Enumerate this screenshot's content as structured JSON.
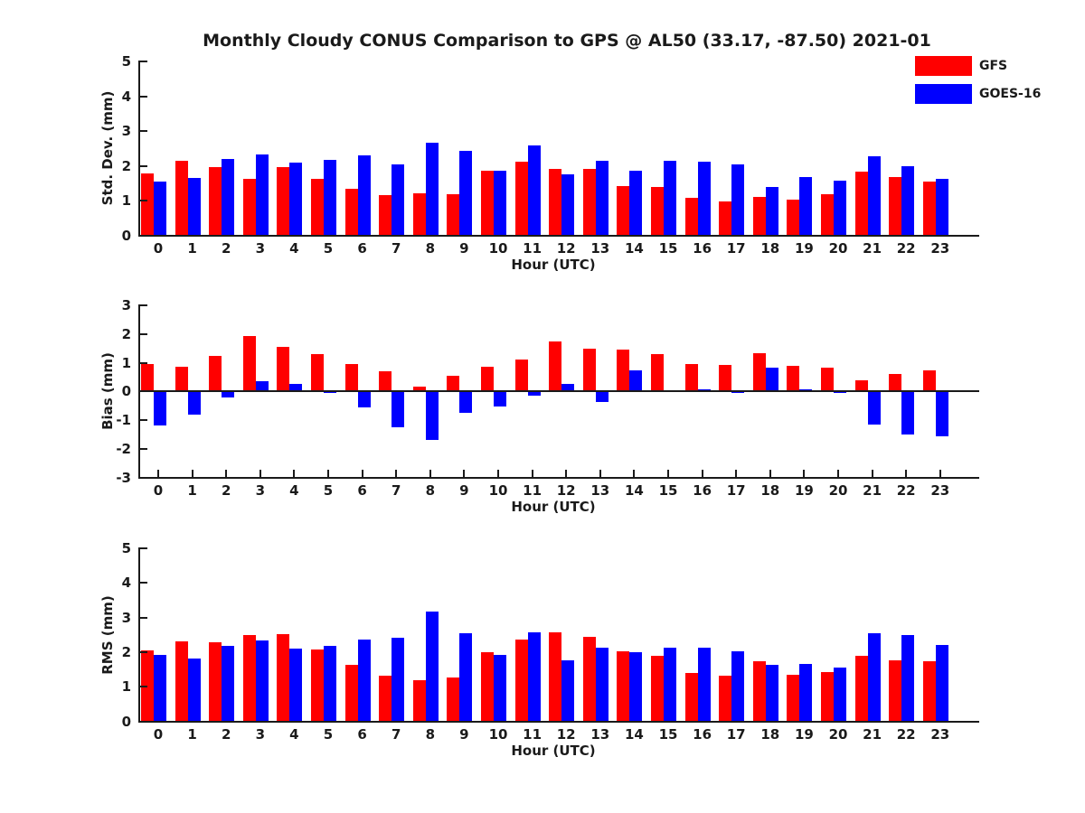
{
  "title": "Monthly Cloudy CONUS Comparison to GPS @ AL50 (33.17, -87.50) 2021-01",
  "colors": {
    "gfs": "#ff0000",
    "goes16": "#0000ff",
    "axis": "#1a1a1a"
  },
  "legend": [
    {
      "label": "GFS",
      "color": "#ff0000"
    },
    {
      "label": "GOES-16",
      "color": "#0000ff"
    }
  ],
  "chart_data": [
    {
      "type": "bar",
      "title": "Monthly Cloudy CONUS Comparison to GPS @ AL50 (33.17, -87.50) 2021-01",
      "xlabel": "Hour (UTC)",
      "ylabel": "Std. Dev. (mm)",
      "ylim": [
        0,
        5
      ],
      "yticks": [
        0,
        1,
        2,
        3,
        4,
        5
      ],
      "grid": false,
      "legend_position": "top-right",
      "categories": [
        0,
        1,
        2,
        3,
        4,
        5,
        6,
        7,
        8,
        9,
        10,
        11,
        12,
        13,
        14,
        15,
        16,
        17,
        18,
        19,
        20,
        21,
        22,
        23
      ],
      "series": [
        {
          "name": "GFS",
          "color": "#ff0000",
          "values": [
            1.78,
            2.15,
            1.95,
            1.62,
            1.97,
            1.62,
            1.35,
            1.15,
            1.2,
            1.18,
            1.85,
            2.12,
            1.92,
            1.92,
            1.41,
            1.38,
            1.08,
            0.97,
            1.1,
            1.03,
            1.17,
            1.84,
            1.67,
            1.55
          ]
        },
        {
          "name": "GOES-16",
          "color": "#0000ff",
          "values": [
            1.55,
            1.65,
            2.2,
            2.33,
            2.1,
            2.18,
            2.3,
            2.05,
            2.67,
            2.43,
            1.85,
            2.58,
            1.75,
            2.13,
            1.87,
            2.15,
            2.12,
            2.04,
            1.4,
            1.67,
            1.56,
            2.28,
            2.0,
            1.62
          ]
        }
      ]
    },
    {
      "type": "bar",
      "xlabel": "Hour (UTC)",
      "ylabel": "Bias (mm)",
      "ylim": [
        -3,
        3
      ],
      "yticks": [
        3,
        2,
        1,
        0,
        -1,
        -2,
        -3
      ],
      "grid": false,
      "categories": [
        0,
        1,
        2,
        3,
        4,
        5,
        6,
        7,
        8,
        9,
        10,
        11,
        12,
        13,
        14,
        15,
        16,
        17,
        18,
        19,
        20,
        21,
        22,
        23
      ],
      "series": [
        {
          "name": "GFS",
          "color": "#ff0000",
          "values": [
            0.97,
            0.87,
            1.25,
            1.92,
            1.55,
            1.3,
            0.95,
            0.72,
            0.18,
            0.55,
            0.85,
            1.1,
            1.75,
            1.5,
            1.46,
            1.3,
            0.95,
            0.93,
            1.33,
            0.9,
            0.83,
            0.4,
            0.62,
            0.73
          ]
        },
        {
          "name": "GOES-16",
          "color": "#0000ff",
          "values": [
            -1.18,
            -0.82,
            -0.2,
            0.36,
            0.25,
            -0.05,
            -0.55,
            -1.25,
            -1.7,
            -0.75,
            -0.52,
            -0.15,
            0.26,
            -0.35,
            0.73,
            0.04,
            0.09,
            -0.04,
            0.83,
            0.09,
            -0.04,
            -1.15,
            -1.5,
            -1.55
          ]
        }
      ]
    },
    {
      "type": "bar",
      "xlabel": "Hour (UTC)",
      "ylabel": "RMS (mm)",
      "ylim": [
        0,
        5
      ],
      "yticks": [
        0,
        1,
        2,
        3,
        4,
        5
      ],
      "grid": false,
      "categories": [
        0,
        1,
        2,
        3,
        4,
        5,
        6,
        7,
        8,
        9,
        10,
        11,
        12,
        13,
        14,
        15,
        16,
        17,
        18,
        19,
        20,
        21,
        22,
        23
      ],
      "series": [
        {
          "name": "GFS",
          "color": "#ff0000",
          "values": [
            2.04,
            2.3,
            2.28,
            2.5,
            2.52,
            2.07,
            1.63,
            1.33,
            1.18,
            1.27,
            2.0,
            2.36,
            2.56,
            2.44,
            2.03,
            1.88,
            1.4,
            1.33,
            1.74,
            1.35,
            1.43,
            1.88,
            1.77,
            1.73
          ]
        },
        {
          "name": "GOES-16",
          "color": "#0000ff",
          "values": [
            1.93,
            1.82,
            2.19,
            2.33,
            2.1,
            2.17,
            2.37,
            2.42,
            3.17,
            2.54,
            1.91,
            2.57,
            1.76,
            2.14,
            2.01,
            2.13,
            2.12,
            2.03,
            1.64,
            1.66,
            1.56,
            2.55,
            2.5,
            2.21
          ]
        }
      ]
    }
  ]
}
